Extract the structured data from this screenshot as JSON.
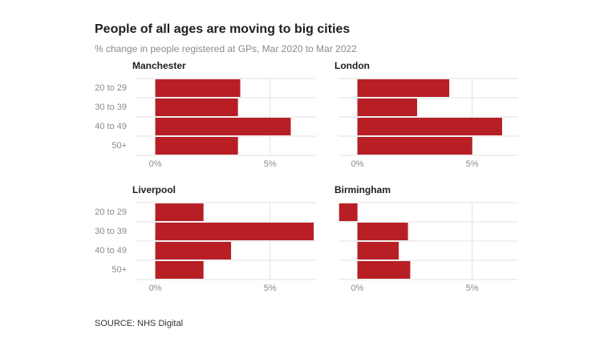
{
  "title": "People of all ages are moving to big cities",
  "subtitle": "% change in people registered at GPs, Mar 2020 to Mar 2022",
  "source": "SOURCE: NHS Digital",
  "chart_data": [
    {
      "type": "bar",
      "title": "Manchester",
      "categories": [
        "20 to 29",
        "30 to 39",
        "40 to 49",
        "50+"
      ],
      "values": [
        3.7,
        3.6,
        5.9,
        3.6
      ],
      "color": "#b71f25",
      "xlim": [
        -1,
        7
      ],
      "xticks": [
        {
          "value": 0,
          "label": "0%"
        },
        {
          "value": 5,
          "label": "5%"
        }
      ],
      "grid": true
    },
    {
      "type": "bar",
      "title": "London",
      "values": [
        4.0,
        2.6,
        6.3,
        5.0
      ],
      "color": "#b71f25",
      "xlim": [
        -1,
        7
      ],
      "xticks": [
        {
          "value": 0,
          "label": "0%"
        },
        {
          "value": 5,
          "label": "5%"
        }
      ],
      "grid": true
    },
    {
      "type": "bar",
      "title": "Liverpool",
      "categories": [
        "20 to 29",
        "30 to 39",
        "40 to 49",
        "50+"
      ],
      "values": [
        2.1,
        6.9,
        3.3,
        2.1
      ],
      "color": "#b71f25",
      "xlim": [
        -1,
        7
      ],
      "xticks": [
        {
          "value": 0,
          "label": "0%"
        },
        {
          "value": 5,
          "label": "5%"
        }
      ],
      "grid": true
    },
    {
      "type": "bar",
      "title": "Birmingham",
      "values": [
        -0.8,
        2.2,
        1.8,
        2.3
      ],
      "color": "#b71f25",
      "xlim": [
        -1,
        7
      ],
      "xticks": [
        {
          "value": 0,
          "label": "0%"
        },
        {
          "value": 5,
          "label": "5%"
        }
      ],
      "grid": true
    }
  ]
}
